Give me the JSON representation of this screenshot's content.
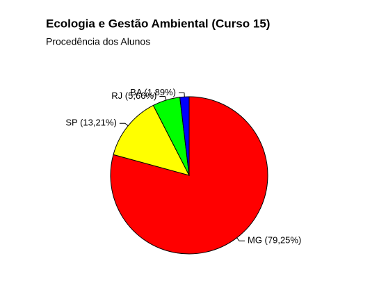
{
  "chart_data": {
    "type": "pie",
    "title": "Ecologia e Gestão Ambiental (Curso 15)",
    "subtitle": "Procedência dos Alunos",
    "values": [
      79.25,
      13.21,
      5.66,
      1.89
    ],
    "value_labels": [
      "MG (79,25%)",
      "SP (13,21%)",
      "RJ (5,66%)",
      "BA (1,89%)"
    ],
    "colors": [
      "#ff0000",
      "#ffff00",
      "#00ff00",
      "#0000ff"
    ]
  }
}
